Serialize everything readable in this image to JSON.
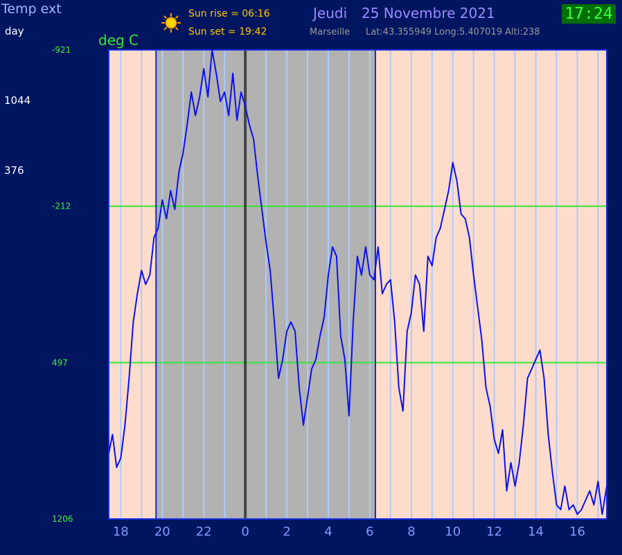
{
  "header": {
    "title": "Temp ext",
    "sunrise": "Sun rise = 06:16",
    "sunset": "Sun set  = 19:42",
    "date_day": "Jeudi",
    "date_full": "25 Novembre 2021",
    "location": "Marseille",
    "coords": "Lat:43.355949   Long:5.407019   Alti:238",
    "clock": "17:24"
  },
  "sidebar": {
    "day_label": "day",
    "values": [
      "1044",
      "376"
    ]
  },
  "chart_data": {
    "type": "line",
    "ylabel": "deg C",
    "y_ticks": [
      {
        "label": "-921",
        "frac": 0.0
      },
      {
        "label": "-212",
        "frac": 0.3333
      },
      {
        "label": "497",
        "frac": 0.6667
      },
      {
        "label": "1206",
        "frac": 1.0
      }
    ],
    "x_labels": [
      "18",
      "20",
      "22",
      "0",
      "2",
      "4",
      "6",
      "8",
      "10",
      "12",
      "14",
      "16"
    ],
    "x_label_hours": [
      18,
      20,
      22,
      24,
      26,
      28,
      30,
      32,
      34,
      36,
      38,
      40
    ],
    "x_range_hours": [
      17.42,
      41.42
    ],
    "sunset_hour": 19.7,
    "sunrise_hour": 30.27,
    "midnight_hour": 24,
    "grid_hours": [
      18,
      19,
      20,
      21,
      22,
      23,
      25,
      26,
      27,
      28,
      29,
      30,
      31,
      32,
      33,
      34,
      35,
      36,
      37,
      38,
      39,
      40,
      41
    ],
    "series": [
      {
        "x": [
          17.42,
          17.6,
          17.8,
          18.0,
          18.2,
          18.4,
          18.6,
          18.8,
          19.0,
          19.2,
          19.4,
          19.6,
          19.8,
          20.0,
          20.2,
          20.4,
          20.6,
          20.8,
          21.0,
          21.2,
          21.4,
          21.6,
          21.8,
          22.0,
          22.2,
          22.4,
          22.6,
          22.8,
          23.0,
          23.2,
          23.4,
          23.6,
          23.8,
          24.0,
          24.2,
          24.4,
          24.6,
          24.8,
          25.0,
          25.2,
          25.4,
          25.6,
          25.8,
          26.0,
          26.2,
          26.4,
          26.6,
          26.8,
          27.0,
          27.2,
          27.4,
          27.6,
          27.8,
          28.0,
          28.2,
          28.4,
          28.6,
          28.8,
          29.0,
          29.2,
          29.4,
          29.6,
          29.8,
          30.0,
          30.2,
          30.4,
          30.6,
          30.8,
          31.0,
          31.2,
          31.4,
          31.6,
          31.8,
          32.0,
          32.2,
          32.4,
          32.6,
          32.8,
          33.0,
          33.2,
          33.4,
          33.6,
          33.8,
          34.0,
          34.2,
          34.4,
          34.6,
          34.8,
          35.0,
          35.2,
          35.4,
          35.6,
          35.8,
          36.0,
          36.2,
          36.4,
          36.6,
          36.8,
          37.0,
          37.2,
          37.4,
          37.6,
          37.8,
          38.0,
          38.2,
          38.4,
          38.6,
          38.8,
          39.0,
          39.2,
          39.4,
          39.6,
          39.8,
          40.0,
          40.2,
          40.4,
          40.6,
          40.8,
          41.0,
          41.2,
          41.42
        ],
        "y": [
          0.86,
          0.82,
          0.89,
          0.87,
          0.8,
          0.7,
          0.58,
          0.52,
          0.47,
          0.5,
          0.48,
          0.4,
          0.38,
          0.32,
          0.36,
          0.3,
          0.34,
          0.26,
          0.22,
          0.16,
          0.09,
          0.14,
          0.1,
          0.04,
          0.1,
          0.0,
          0.05,
          0.11,
          0.09,
          0.14,
          0.05,
          0.15,
          0.09,
          0.12,
          0.16,
          0.19,
          0.27,
          0.34,
          0.41,
          0.47,
          0.58,
          0.7,
          0.66,
          0.6,
          0.58,
          0.6,
          0.72,
          0.8,
          0.74,
          0.68,
          0.66,
          0.61,
          0.57,
          0.48,
          0.42,
          0.44,
          0.61,
          0.66,
          0.78,
          0.58,
          0.44,
          0.48,
          0.42,
          0.48,
          0.49,
          0.42,
          0.52,
          0.5,
          0.49,
          0.58,
          0.72,
          0.77,
          0.6,
          0.56,
          0.48,
          0.5,
          0.6,
          0.44,
          0.46,
          0.4,
          0.38,
          0.34,
          0.3,
          0.24,
          0.28,
          0.35,
          0.36,
          0.4,
          0.48,
          0.55,
          0.62,
          0.72,
          0.76,
          0.83,
          0.86,
          0.81,
          0.94,
          0.88,
          0.93,
          0.88,
          0.8,
          0.7,
          0.68,
          0.66,
          0.64,
          0.7,
          0.82,
          0.9,
          0.97,
          0.98,
          0.93,
          0.98,
          0.97,
          0.99,
          0.98,
          0.96,
          0.94,
          0.97,
          0.92,
          0.99,
          0.93
        ]
      }
    ]
  },
  "colors": {
    "background": "#00155f",
    "day_fill": "#fedccb",
    "night_fill": "#b2b2b2",
    "grid_line": "#aecbff",
    "series_line": "#0a10f0",
    "ref_line": "#33e633"
  }
}
